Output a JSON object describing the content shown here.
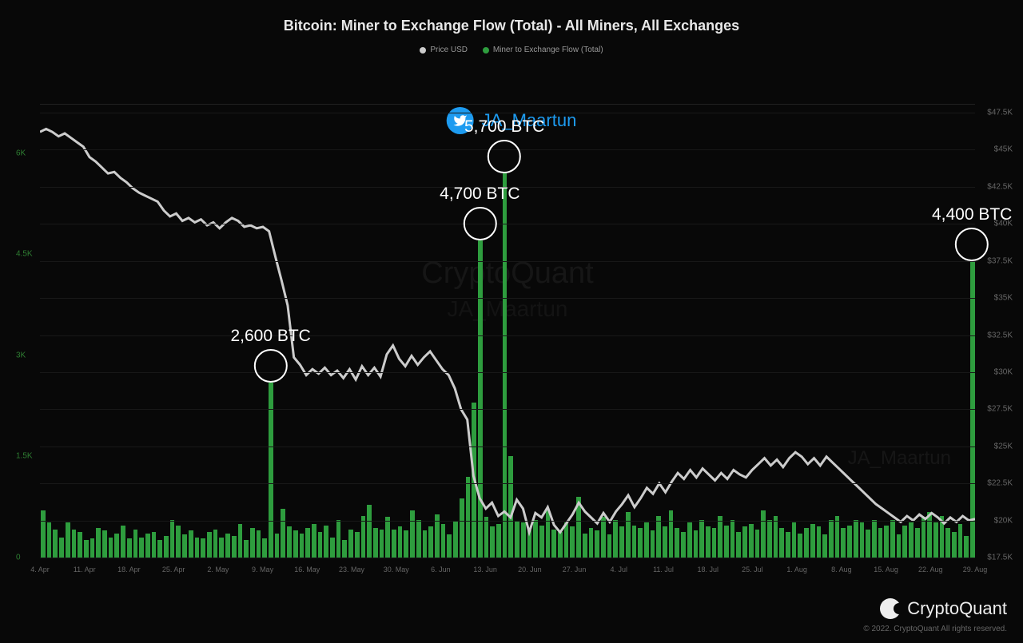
{
  "title": "Bitcoin: Miner to Exchange Flow (Total) - All Miners, All Exchanges",
  "legend": {
    "series1": {
      "label": "Price USD",
      "color": "#cccccc"
    },
    "series2": {
      "label": "Miner to Exchange Flow (Total)",
      "color": "#2e9d3e"
    }
  },
  "twitter": {
    "handle": "JA_Maartun"
  },
  "watermark": {
    "main": "CryptoQuant",
    "sub": "JA_Maartun",
    "br": "JA_Maartun"
  },
  "brand": {
    "name": "CryptoQuant"
  },
  "copyright": "© 2022. CryptoQuant All rights reserved.",
  "chart": {
    "type": "combo-bar-line",
    "background_color": "#080808",
    "grid_color": "#181818",
    "bar_color": "#2e9d3e",
    "line_color": "#cccccc",
    "line_width": 1.2,
    "left_axis": {
      "label_color": "#2e7d32",
      "ticks": [
        0,
        1500,
        3000,
        4500,
        6000
      ],
      "tick_labels": [
        "0",
        "1.5K",
        "3K",
        "4.5K",
        "6K"
      ],
      "min": 0,
      "max": 6600
    },
    "right_axis": {
      "label_color": "#666666",
      "ticks": [
        17500,
        20000,
        22500,
        25000,
        27500,
        30000,
        32500,
        35000,
        37500,
        40000,
        42500,
        45000,
        47500
      ],
      "tick_labels": [
        "$17.5K",
        "$20K",
        "$22.5K",
        "$25K",
        "$27.5K",
        "$30K",
        "$32.5K",
        "$35K",
        "$37.5K",
        "$40K",
        "$42.5K",
        "$45K",
        "$47.5K"
      ],
      "min": 17500,
      "max": 47500
    },
    "x_labels": [
      "4. Apr",
      "11. Apr",
      "18. Apr",
      "25. Apr",
      "2. May",
      "9. May",
      "16. May",
      "23. May",
      "30. May",
      "6. Jun",
      "13. Jun",
      "20. Jun",
      "27. Jun",
      "4. Jul",
      "11. Jul",
      "18. Jul",
      "25. Jul",
      "1. Aug",
      "8. Aug",
      "15. Aug",
      "22. Aug",
      "29. Aug"
    ],
    "bars": [
      700,
      520,
      420,
      300,
      520,
      420,
      380,
      260,
      280,
      440,
      400,
      300,
      360,
      480,
      280,
      420,
      300,
      360,
      380,
      260,
      320,
      560,
      480,
      340,
      400,
      300,
      280,
      380,
      420,
      300,
      360,
      320,
      500,
      260,
      440,
      400,
      280,
      2600,
      360,
      720,
      460,
      400,
      360,
      440,
      500,
      380,
      480,
      300,
      560,
      260,
      420,
      380,
      620,
      780,
      440,
      420,
      600,
      420,
      460,
      400,
      700,
      560,
      400,
      460,
      640,
      500,
      340,
      540,
      880,
      1200,
      2300,
      4700,
      600,
      460,
      500,
      5700,
      1500,
      540,
      520,
      400,
      560,
      480,
      700,
      420,
      380,
      520,
      460,
      900,
      360,
      440,
      400,
      600,
      340,
      560,
      460,
      680,
      480,
      440,
      520,
      400,
      620,
      460,
      700,
      440,
      380,
      520,
      400,
      560,
      460,
      440,
      620,
      480,
      560,
      380,
      460,
      500,
      420,
      700,
      560,
      620,
      440,
      380,
      520,
      360,
      440,
      500,
      460,
      340,
      560,
      620,
      440,
      480,
      560,
      520,
      420,
      560,
      440,
      480,
      560,
      340,
      480,
      520,
      440,
      600,
      680,
      520,
      620,
      440,
      380,
      500,
      320,
      4400
    ],
    "price_line": [
      46200,
      46400,
      46200,
      45900,
      46100,
      45800,
      45500,
      45200,
      44500,
      44200,
      43800,
      43400,
      43500,
      43100,
      42800,
      42400,
      42100,
      41900,
      41700,
      41500,
      40900,
      40500,
      40700,
      40200,
      40400,
      40100,
      40300,
      39900,
      40100,
      39700,
      40100,
      40400,
      40200,
      39800,
      39900,
      39700,
      39800,
      39500,
      37800,
      36200,
      34500,
      31000,
      30500,
      29800,
      30200,
      29900,
      30300,
      29800,
      30100,
      29600,
      30200,
      29500,
      30400,
      29800,
      30300,
      29700,
      31200,
      31800,
      30900,
      30400,
      31100,
      30500,
      31000,
      31400,
      30800,
      30200,
      29800,
      28900,
      27500,
      26800,
      23000,
      21500,
      20800,
      21200,
      20300,
      20600,
      20200,
      21400,
      20800,
      19200,
      20500,
      20200,
      20900,
      19700,
      19200,
      19800,
      20400,
      21200,
      20600,
      20200,
      19800,
      20500,
      19900,
      20600,
      21100,
      21700,
      20900,
      21500,
      22200,
      21800,
      22500,
      21900,
      22600,
      23200,
      22800,
      23400,
      22900,
      23500,
      23100,
      22700,
      23200,
      22800,
      23400,
      23100,
      22900,
      23400,
      23800,
      24200,
      23700,
      24100,
      23600,
      24200,
      24600,
      24300,
      23800,
      24200,
      23700,
      24300,
      23900,
      23500,
      23100,
      22700,
      22300,
      21900,
      21500,
      21100,
      20800,
      20500,
      20200,
      19900,
      20300,
      20000,
      20400,
      20100,
      20500,
      20200,
      19800,
      20200,
      19900,
      20300,
      20000,
      20100
    ],
    "annotations": [
      {
        "label": "2,600 BTC",
        "bar_index": 37,
        "value": 2600
      },
      {
        "label": "4,700 BTC",
        "bar_index": 71,
        "value": 4700
      },
      {
        "label": "5,700 BTC",
        "bar_index": 75,
        "value": 5700
      },
      {
        "label": "4,400 BTC",
        "bar_index": 151,
        "value": 4400
      }
    ]
  }
}
